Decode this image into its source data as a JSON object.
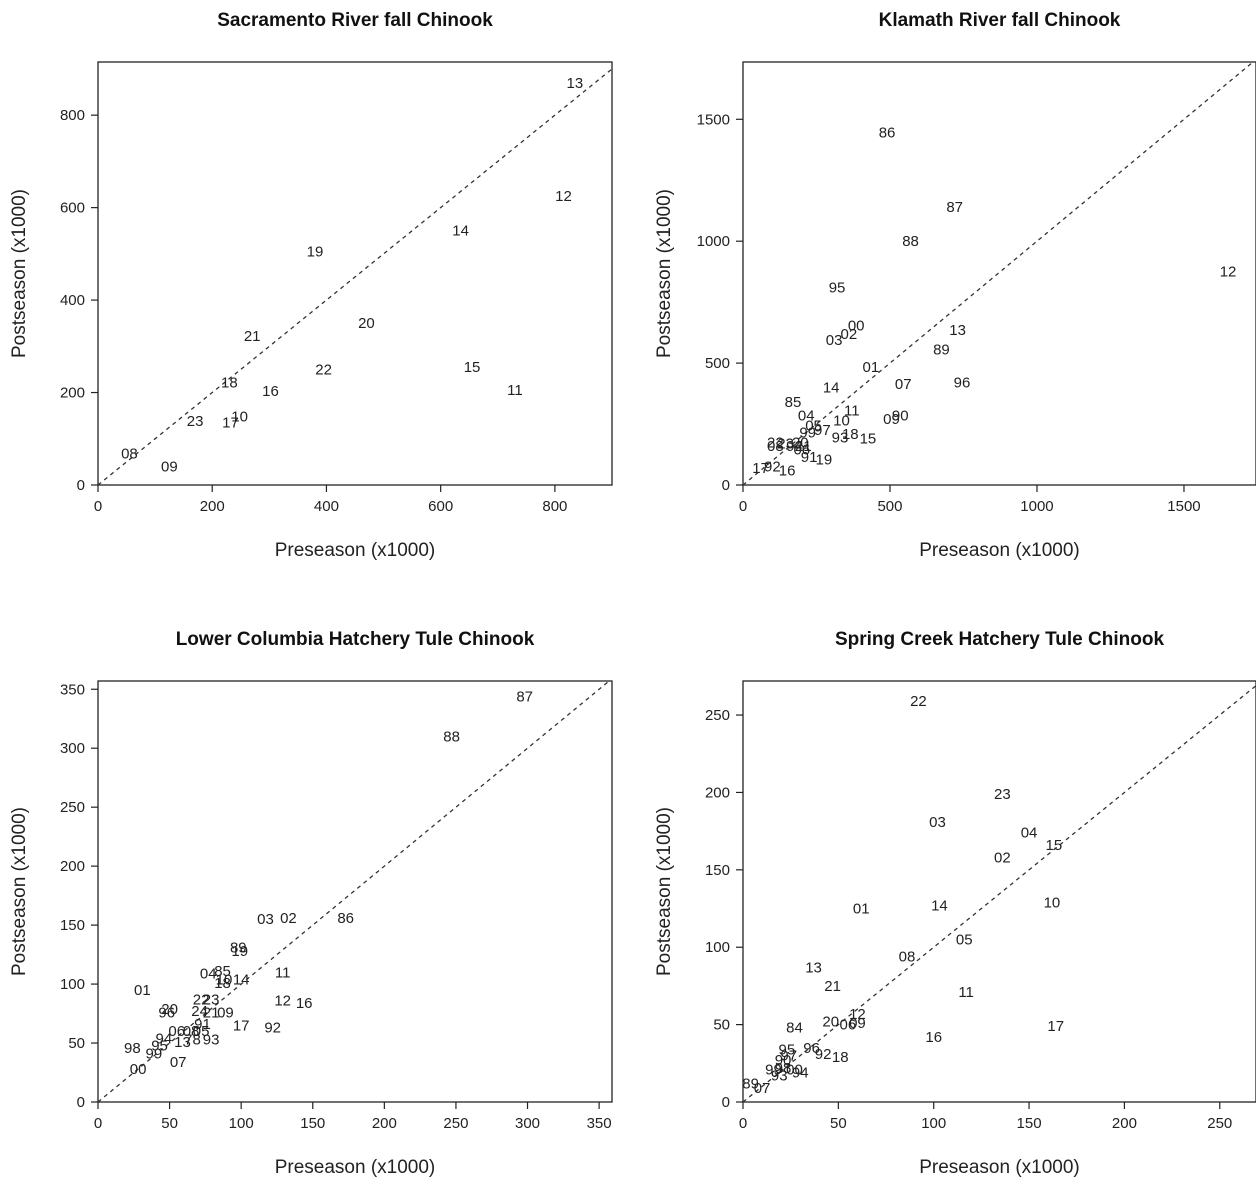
{
  "chart_data": [
    {
      "type": "scatter",
      "title": "Sacramento River fall Chinook",
      "xlabel": "Preseason (x1000)",
      "ylabel": "Postseason (x1000)",
      "xlim": [
        0,
        900
      ],
      "ylim": [
        0,
        915
      ],
      "xticks": [
        0,
        200,
        400,
        600,
        800
      ],
      "yticks": [
        0,
        200,
        400,
        600,
        800
      ],
      "reference_line": "y = x",
      "points": [
        {
          "label": "13",
          "x": 835,
          "y": 870
        },
        {
          "label": "12",
          "x": 815,
          "y": 625
        },
        {
          "label": "14",
          "x": 635,
          "y": 550
        },
        {
          "label": "19",
          "x": 380,
          "y": 505
        },
        {
          "label": "20",
          "x": 470,
          "y": 350
        },
        {
          "label": "21",
          "x": 270,
          "y": 322
        },
        {
          "label": "15",
          "x": 655,
          "y": 255
        },
        {
          "label": "22",
          "x": 395,
          "y": 250
        },
        {
          "label": "11",
          "x": 730,
          "y": 205
        },
        {
          "label": "18",
          "x": 230,
          "y": 222
        },
        {
          "label": "16",
          "x": 302,
          "y": 203
        },
        {
          "label": "23",
          "x": 170,
          "y": 138
        },
        {
          "label": "10",
          "x": 248,
          "y": 148
        },
        {
          "label": "17",
          "x": 232,
          "y": 135
        },
        {
          "label": "08",
          "x": 55,
          "y": 68
        },
        {
          "label": "09",
          "x": 125,
          "y": 40
        }
      ]
    },
    {
      "type": "scatter",
      "title": "Klamath River fall Chinook",
      "xlabel": "Preseason (x1000)",
      "ylabel": "Postseason (x1000)",
      "xlim": [
        0,
        1745
      ],
      "ylim": [
        0,
        1735
      ],
      "xticks": [
        0,
        500,
        1000,
        1500
      ],
      "yticks": [
        0,
        500,
        1000,
        1500
      ],
      "reference_line": "y = x",
      "points": [
        {
          "label": "86",
          "x": 490,
          "y": 1445
        },
        {
          "label": "87",
          "x": 720,
          "y": 1140
        },
        {
          "label": "88",
          "x": 570,
          "y": 1000
        },
        {
          "label": "12",
          "x": 1650,
          "y": 875
        },
        {
          "label": "95",
          "x": 320,
          "y": 810
        },
        {
          "label": "00",
          "x": 385,
          "y": 655
        },
        {
          "label": "02",
          "x": 360,
          "y": 620
        },
        {
          "label": "03",
          "x": 310,
          "y": 595
        },
        {
          "label": "13",
          "x": 730,
          "y": 635
        },
        {
          "label": "89",
          "x": 675,
          "y": 555
        },
        {
          "label": "01",
          "x": 435,
          "y": 485
        },
        {
          "label": "07",
          "x": 545,
          "y": 415
        },
        {
          "label": "96",
          "x": 745,
          "y": 420
        },
        {
          "label": "14",
          "x": 300,
          "y": 400
        },
        {
          "label": "85",
          "x": 170,
          "y": 340
        },
        {
          "label": "11",
          "x": 370,
          "y": 305
        },
        {
          "label": "04",
          "x": 215,
          "y": 285
        },
        {
          "label": "10",
          "x": 335,
          "y": 265
        },
        {
          "label": "90",
          "x": 535,
          "y": 285
        },
        {
          "label": "09",
          "x": 505,
          "y": 270
        },
        {
          "label": "05",
          "x": 240,
          "y": 245
        },
        {
          "label": "97",
          "x": 270,
          "y": 225
        },
        {
          "label": "99",
          "x": 220,
          "y": 215
        },
        {
          "label": "18",
          "x": 365,
          "y": 210
        },
        {
          "label": "93",
          "x": 330,
          "y": 195
        },
        {
          "label": "15",
          "x": 425,
          "y": 190
        },
        {
          "label": "22",
          "x": 110,
          "y": 175
        },
        {
          "label": "23",
          "x": 145,
          "y": 170
        },
        {
          "label": "20",
          "x": 195,
          "y": 175
        },
        {
          "label": "08",
          "x": 110,
          "y": 160
        },
        {
          "label": "94",
          "x": 175,
          "y": 160
        },
        {
          "label": "21",
          "x": 205,
          "y": 160
        },
        {
          "label": "06",
          "x": 200,
          "y": 145
        },
        {
          "label": "91",
          "x": 225,
          "y": 115
        },
        {
          "label": "19",
          "x": 275,
          "y": 105
        },
        {
          "label": "17",
          "x": 60,
          "y": 70
        },
        {
          "label": "92",
          "x": 100,
          "y": 75
        },
        {
          "label": "16",
          "x": 150,
          "y": 60
        }
      ]
    },
    {
      "type": "scatter",
      "title": "Lower Columbia Hatchery Tule Chinook",
      "xlabel": "Preseason (x1000)",
      "ylabel": "Postseason (x1000)",
      "xlim": [
        0,
        359
      ],
      "ylim": [
        0,
        357
      ],
      "xticks": [
        0,
        50,
        100,
        150,
        200,
        250,
        300,
        350
      ],
      "yticks": [
        0,
        50,
        100,
        150,
        200,
        250,
        300,
        350
      ],
      "reference_line": "y = x",
      "points": [
        {
          "label": "87",
          "x": 298,
          "y": 344
        },
        {
          "label": "88",
          "x": 247,
          "y": 310
        },
        {
          "label": "86",
          "x": 173,
          "y": 156
        },
        {
          "label": "03",
          "x": 117,
          "y": 155
        },
        {
          "label": "02",
          "x": 133,
          "y": 156
        },
        {
          "label": "89",
          "x": 98,
          "y": 131
        },
        {
          "label": "19",
          "x": 99,
          "y": 128
        },
        {
          "label": "11",
          "x": 129,
          "y": 110
        },
        {
          "label": "04",
          "x": 77,
          "y": 109
        },
        {
          "label": "85",
          "x": 87,
          "y": 111
        },
        {
          "label": "10",
          "x": 88,
          "y": 104
        },
        {
          "label": "14",
          "x": 100,
          "y": 104
        },
        {
          "label": "18",
          "x": 87,
          "y": 101
        },
        {
          "label": "01",
          "x": 31,
          "y": 95
        },
        {
          "label": "12",
          "x": 129,
          "y": 86
        },
        {
          "label": "16",
          "x": 144,
          "y": 84
        },
        {
          "label": "22",
          "x": 72,
          "y": 87
        },
        {
          "label": "23",
          "x": 79,
          "y": 87
        },
        {
          "label": "20",
          "x": 50,
          "y": 79
        },
        {
          "label": "96",
          "x": 48,
          "y": 76
        },
        {
          "label": "24",
          "x": 71,
          "y": 77
        },
        {
          "label": "21",
          "x": 79,
          "y": 76
        },
        {
          "label": "09",
          "x": 89,
          "y": 76
        },
        {
          "label": "17",
          "x": 100,
          "y": 65
        },
        {
          "label": "92",
          "x": 122,
          "y": 63
        },
        {
          "label": "91",
          "x": 73,
          "y": 66
        },
        {
          "label": "06",
          "x": 55,
          "y": 60
        },
        {
          "label": "08",
          "x": 65,
          "y": 60
        },
        {
          "label": "05",
          "x": 72,
          "y": 60
        },
        {
          "label": "94",
          "x": 46,
          "y": 54
        },
        {
          "label": "13",
          "x": 59,
          "y": 51
        },
        {
          "label": "78",
          "x": 66,
          "y": 53
        },
        {
          "label": "93",
          "x": 79,
          "y": 53
        },
        {
          "label": "95",
          "x": 43,
          "y": 48
        },
        {
          "label": "98",
          "x": 24,
          "y": 46
        },
        {
          "label": "99",
          "x": 39,
          "y": 41
        },
        {
          "label": "07",
          "x": 56,
          "y": 34
        },
        {
          "label": "00",
          "x": 28,
          "y": 28
        }
      ]
    },
    {
      "type": "scatter",
      "title": "Spring Creek Hatchery Tule Chinook",
      "xlabel": "Preseason (x1000)",
      "ylabel": "Postseason (x1000)",
      "xlim": [
        0,
        269
      ],
      "ylim": [
        0,
        272
      ],
      "xticks": [
        0,
        50,
        100,
        150,
        200,
        250
      ],
      "yticks": [
        0,
        50,
        100,
        150,
        200,
        250
      ],
      "reference_line": "y = x",
      "points": [
        {
          "label": "22",
          "x": 92,
          "y": 259
        },
        {
          "label": "23",
          "x": 136,
          "y": 199
        },
        {
          "label": "03",
          "x": 102,
          "y": 181
        },
        {
          "label": "04",
          "x": 150,
          "y": 174
        },
        {
          "label": "15",
          "x": 163,
          "y": 166
        },
        {
          "label": "02",
          "x": 136,
          "y": 158
        },
        {
          "label": "01",
          "x": 62,
          "y": 125
        },
        {
          "label": "14",
          "x": 103,
          "y": 127
        },
        {
          "label": "10",
          "x": 162,
          "y": 129
        },
        {
          "label": "05",
          "x": 116,
          "y": 105
        },
        {
          "label": "08",
          "x": 86,
          "y": 94
        },
        {
          "label": "13",
          "x": 37,
          "y": 87
        },
        {
          "label": "21",
          "x": 47,
          "y": 75
        },
        {
          "label": "11",
          "x": 117,
          "y": 71
        },
        {
          "label": "84",
          "x": 27,
          "y": 48
        },
        {
          "label": "20",
          "x": 46,
          "y": 52
        },
        {
          "label": "12",
          "x": 60,
          "y": 57
        },
        {
          "label": "06",
          "x": 55,
          "y": 50
        },
        {
          "label": "09",
          "x": 60,
          "y": 51
        },
        {
          "label": "17",
          "x": 164,
          "y": 49
        },
        {
          "label": "16",
          "x": 100,
          "y": 42
        },
        {
          "label": "95",
          "x": 23,
          "y": 34
        },
        {
          "label": "96",
          "x": 36,
          "y": 35
        },
        {
          "label": "97",
          "x": 24,
          "y": 30
        },
        {
          "label": "92",
          "x": 42,
          "y": 31
        },
        {
          "label": "18",
          "x": 51,
          "y": 29
        },
        {
          "label": "90",
          "x": 21,
          "y": 27
        },
        {
          "label": "99",
          "x": 16,
          "y": 21
        },
        {
          "label": "98",
          "x": 21,
          "y": 22
        },
        {
          "label": "00",
          "x": 27,
          "y": 21
        },
        {
          "label": "94",
          "x": 30,
          "y": 19
        },
        {
          "label": "93",
          "x": 19,
          "y": 17
        },
        {
          "label": "89",
          "x": 4,
          "y": 12
        },
        {
          "label": "07",
          "x": 10,
          "y": 9
        }
      ]
    }
  ]
}
